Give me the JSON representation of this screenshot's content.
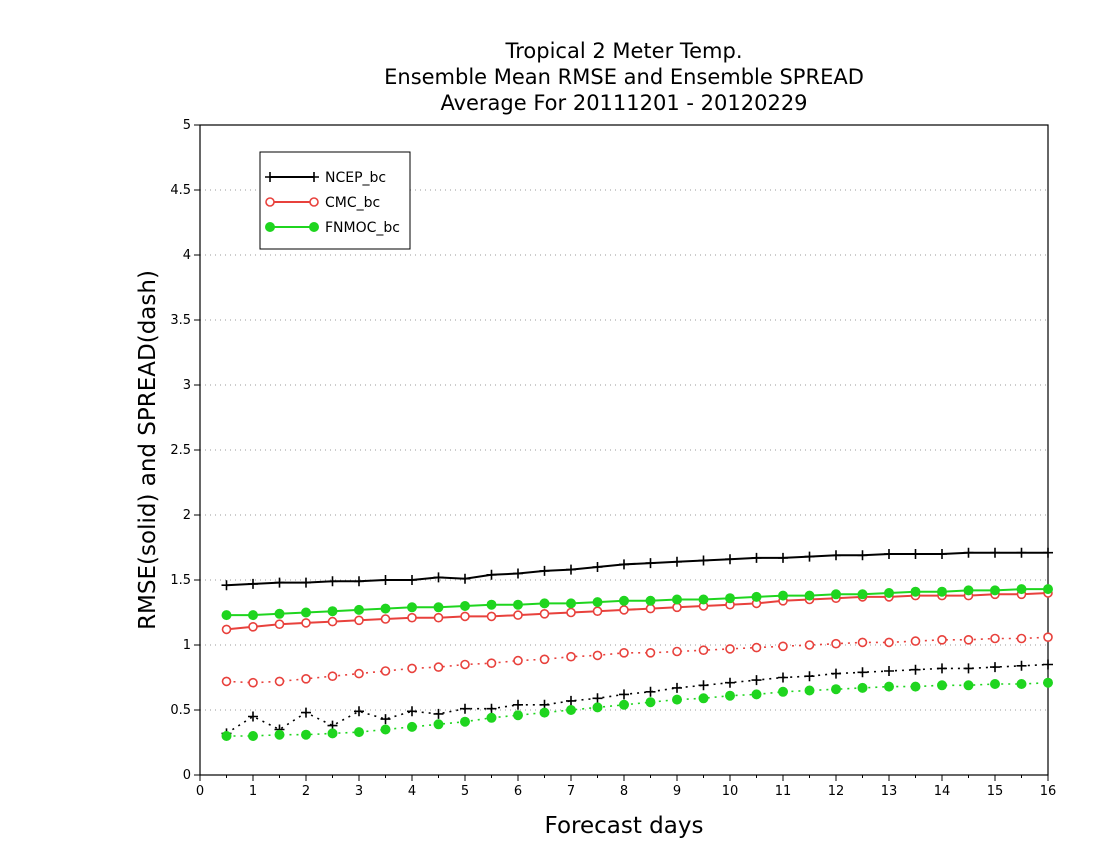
{
  "chart_data": {
    "type": "line",
    "title": [
      "Tropical 2 Meter Temp.",
      "Ensemble Mean RMSE and Ensemble SPREAD",
      "Average For 20111201 - 20120229"
    ],
    "xlabel": "Forecast days",
    "ylabel": "RMSE(solid)  and  SPREAD(dash)",
    "xlim": [
      0,
      16
    ],
    "ylim": [
      0,
      5
    ],
    "xticks": [
      "0",
      "1",
      "2",
      "3",
      "4",
      "5",
      "6",
      "7",
      "8",
      "9",
      "10",
      "11",
      "12",
      "13",
      "14",
      "15",
      "16"
    ],
    "yticks": [
      "0",
      "0.5",
      "1",
      "1.5",
      "2",
      "2.5",
      "3",
      "3.5",
      "4",
      "4.5",
      "5"
    ],
    "grid": "horizontal-dotted",
    "legend_position": "top-left",
    "x": [
      0.5,
      1,
      1.5,
      2,
      2.5,
      3,
      3.5,
      4,
      4.5,
      5,
      5.5,
      6,
      6.5,
      7,
      7.5,
      8,
      8.5,
      9,
      9.5,
      10,
      10.5,
      11,
      11.5,
      12,
      12.5,
      13,
      13.5,
      14,
      14.5,
      15,
      15.5,
      16
    ],
    "series": [
      {
        "name": "NCEP_bc",
        "color": "#000000",
        "marker": "plus",
        "rmse": [
          1.46,
          1.47,
          1.48,
          1.48,
          1.49,
          1.49,
          1.5,
          1.5,
          1.52,
          1.51,
          1.54,
          1.55,
          1.57,
          1.58,
          1.6,
          1.62,
          1.63,
          1.64,
          1.65,
          1.66,
          1.67,
          1.67,
          1.68,
          1.69,
          1.69,
          1.7,
          1.7,
          1.7,
          1.71,
          1.71,
          1.71,
          1.71
        ],
        "spread": [
          0.32,
          0.45,
          0.35,
          0.48,
          0.38,
          0.49,
          0.43,
          0.49,
          0.47,
          0.51,
          0.51,
          0.54,
          0.54,
          0.57,
          0.59,
          0.62,
          0.64,
          0.67,
          0.69,
          0.71,
          0.73,
          0.75,
          0.76,
          0.78,
          0.79,
          0.8,
          0.81,
          0.82,
          0.82,
          0.83,
          0.84,
          0.85
        ]
      },
      {
        "name": "CMC_bc",
        "color": "#e8413c",
        "marker": "open-circle",
        "rmse": [
          1.12,
          1.14,
          1.16,
          1.17,
          1.18,
          1.19,
          1.2,
          1.21,
          1.21,
          1.22,
          1.22,
          1.23,
          1.24,
          1.25,
          1.26,
          1.27,
          1.28,
          1.29,
          1.3,
          1.31,
          1.32,
          1.34,
          1.35,
          1.36,
          1.37,
          1.37,
          1.38,
          1.38,
          1.38,
          1.39,
          1.39,
          1.4
        ],
        "spread": [
          0.72,
          0.71,
          0.72,
          0.74,
          0.76,
          0.78,
          0.8,
          0.82,
          0.83,
          0.85,
          0.86,
          0.88,
          0.89,
          0.91,
          0.92,
          0.94,
          0.94,
          0.95,
          0.96,
          0.97,
          0.98,
          0.99,
          1.0,
          1.01,
          1.02,
          1.02,
          1.03,
          1.04,
          1.04,
          1.05,
          1.05,
          1.06
        ]
      },
      {
        "name": "FNMOC_bc",
        "color": "#1fd51f",
        "marker": "filled-circle",
        "rmse": [
          1.23,
          1.23,
          1.24,
          1.25,
          1.26,
          1.27,
          1.28,
          1.29,
          1.29,
          1.3,
          1.31,
          1.31,
          1.32,
          1.32,
          1.33,
          1.34,
          1.34,
          1.35,
          1.35,
          1.36,
          1.37,
          1.38,
          1.38,
          1.39,
          1.39,
          1.4,
          1.41,
          1.41,
          1.42,
          1.42,
          1.43,
          1.43
        ],
        "spread": [
          0.3,
          0.3,
          0.31,
          0.31,
          0.32,
          0.33,
          0.35,
          0.37,
          0.39,
          0.41,
          0.44,
          0.46,
          0.48,
          0.5,
          0.52,
          0.54,
          0.56,
          0.58,
          0.59,
          0.61,
          0.62,
          0.64,
          0.65,
          0.66,
          0.67,
          0.68,
          0.68,
          0.69,
          0.69,
          0.7,
          0.7,
          0.71
        ]
      }
    ]
  }
}
